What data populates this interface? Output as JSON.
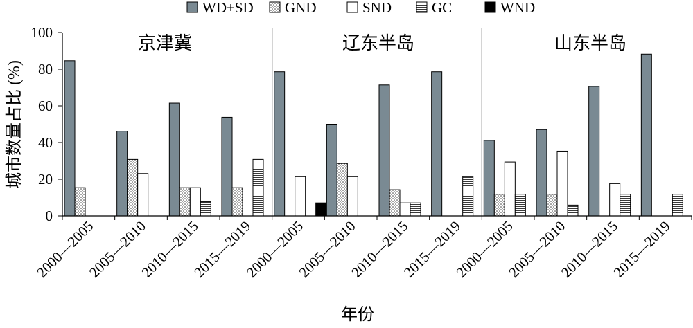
{
  "chart_data": {
    "type": "bar",
    "title": "",
    "xlabel": "年份",
    "ylabel": "城市数量占比 (%)",
    "ylim": [
      0,
      100
    ],
    "yticks": [
      0,
      20,
      40,
      60,
      80,
      100
    ],
    "grid": false,
    "legend_position": "top",
    "groups": [
      "京津冀",
      "辽东半岛",
      "山东半岛"
    ],
    "periods": [
      "2000—2005",
      "2005—2010",
      "2010—2015",
      "2015—2019"
    ],
    "categories": [
      "2000—2005",
      "2005—2010",
      "2010—2015",
      "2015—2019",
      "2000—2005",
      "2005—2010",
      "2010—2015",
      "2015—2019",
      "2000—2005",
      "2005—2010",
      "2010—2015",
      "2015—2019"
    ],
    "series": [
      {
        "name": "WD+SD",
        "pattern": "solid-gray",
        "color": "#7a8a93",
        "values": [
          84.6,
          46.2,
          61.5,
          53.8,
          78.6,
          50.0,
          71.4,
          78.6,
          41.2,
          47.1,
          70.6,
          88.2
        ]
      },
      {
        "name": "GND",
        "pattern": "dots",
        "color": "#ffffff",
        "values": [
          15.4,
          30.8,
          15.4,
          15.4,
          0,
          28.6,
          14.3,
          0,
          11.8,
          11.8,
          0,
          0
        ]
      },
      {
        "name": "SND",
        "pattern": "empty",
        "color": "#ffffff",
        "values": [
          0,
          23.1,
          15.4,
          0,
          21.4,
          21.4,
          7.1,
          0,
          29.4,
          35.3,
          17.6,
          0
        ]
      },
      {
        "name": "GC",
        "pattern": "horizontal-lines",
        "color": "#ffffff",
        "values": [
          0,
          0,
          7.7,
          30.8,
          0,
          0,
          7.1,
          21.4,
          11.8,
          5.9,
          11.8,
          11.8
        ]
      },
      {
        "name": "WND",
        "pattern": "solid-black",
        "color": "#000000",
        "values": [
          0,
          0,
          0,
          0,
          7.1,
          0,
          0,
          0,
          0,
          0,
          0,
          0
        ]
      }
    ]
  }
}
